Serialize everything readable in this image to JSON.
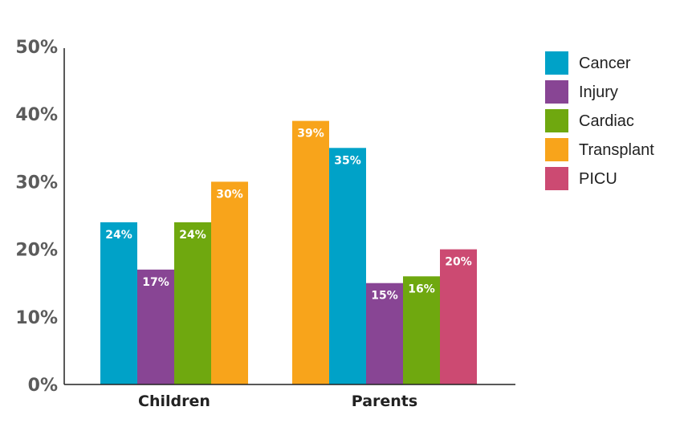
{
  "chart_data": {
    "type": "bar",
    "title": "",
    "xlabel": "",
    "ylabel": "",
    "ylim": [
      0,
      50
    ],
    "yticks": [
      0,
      10,
      20,
      30,
      40,
      50
    ],
    "ytick_labels": [
      "0%",
      "10%",
      "20%",
      "30%",
      "40%",
      "50%"
    ],
    "grid": false,
    "legend_position": "top-right",
    "legend": [
      {
        "name": "Cancer",
        "color": "#00a2c8"
      },
      {
        "name": "Injury",
        "color": "#884594"
      },
      {
        "name": "Cardiac",
        "color": "#6fa80f"
      },
      {
        "name": "Transplant",
        "color": "#f8a41b"
      },
      {
        "name": "PICU",
        "color": "#cc4a72"
      }
    ],
    "groups": [
      {
        "category": "Children",
        "bars": [
          {
            "series": "Cancer",
            "value": 24,
            "label": "24%"
          },
          {
            "series": "Injury",
            "value": 17,
            "label": "17%"
          },
          {
            "series": "Cardiac",
            "value": 24,
            "label": "24%"
          },
          {
            "series": "Transplant",
            "value": 30,
            "label": "30%"
          }
        ]
      },
      {
        "category": "Parents",
        "bars": [
          {
            "series": "Transplant",
            "value": 39,
            "label": "39%"
          },
          {
            "series": "Cancer",
            "value": 35,
            "label": "35%"
          },
          {
            "series": "Injury",
            "value": 15,
            "label": "15%"
          },
          {
            "series": "Cardiac",
            "value": 16,
            "label": "16%"
          },
          {
            "series": "PICU",
            "value": 20,
            "label": "20%"
          }
        ]
      }
    ]
  }
}
